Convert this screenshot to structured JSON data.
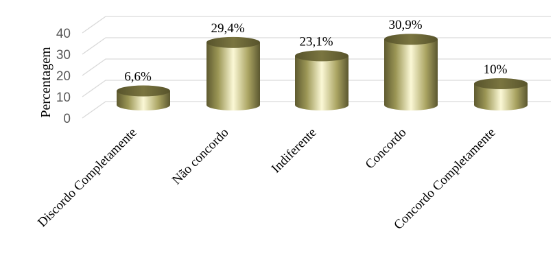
{
  "chart_data": {
    "type": "bar",
    "style": "3d-cylinder",
    "categories": [
      "Discordo Completamente",
      "Não concordo",
      "Indiferente",
      "Concordo",
      "Concordo Completamente"
    ],
    "values": [
      6.6,
      29.4,
      23.1,
      30.9,
      10
    ],
    "data_labels": [
      "6,6%",
      "29,4%",
      "23,1%",
      "30,9%",
      "10%"
    ],
    "ylabel": "Percentagem",
    "ylim": [
      0,
      40
    ],
    "yticks": [
      0,
      10,
      20,
      30,
      40
    ],
    "grid": true,
    "legend": "none",
    "colors": {
      "bar_dark": "#5e5a30",
      "bar_mid": "#b4ae6a",
      "bar_light": "#fbf8d6",
      "top": "#6c6836",
      "grid": "#d9d9d9"
    }
  }
}
